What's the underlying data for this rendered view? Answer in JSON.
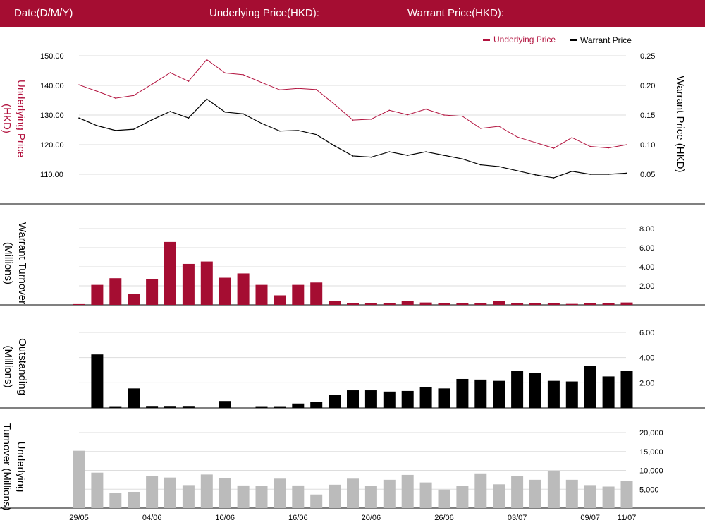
{
  "header": {
    "date_label": "Date(D/M/Y)",
    "underlying_label": "Underlying Price(HKD):",
    "warrant_label": "Warrant Price(HKD):"
  },
  "colors": {
    "brand": "#a50d32",
    "underlying_line": "#b2123e",
    "warrant_line": "#000000",
    "turnover_bar": "#a50d32",
    "outstanding_bar": "#000000",
    "underlying_turnover_bar": "#bbbbbb",
    "grid": "#dddddd"
  },
  "x_axis": {
    "ticks": [
      {
        "index": 0,
        "label": "29/05"
      },
      {
        "index": 4,
        "label": "04/06"
      },
      {
        "index": 8,
        "label": "10/06"
      },
      {
        "index": 12,
        "label": "16/06"
      },
      {
        "index": 16,
        "label": "20/06"
      },
      {
        "index": 20,
        "label": "26/06"
      },
      {
        "index": 24,
        "label": "03/07"
      },
      {
        "index": 28,
        "label": "09/07"
      },
      {
        "index": 30,
        "label": "11/07"
      }
    ]
  },
  "chart_data": [
    {
      "type": "line",
      "legend": [
        {
          "name": "Underlying Price",
          "color": "#b2123e"
        },
        {
          "name": "Warrant Price",
          "color": "#000000"
        }
      ],
      "legend_position": "top-right",
      "ylabel_left": "Underlying Price (HKD)",
      "ylabel_right": "Warrant  Price (HKD)",
      "ylim_left": [
        105,
        155
      ],
      "yticks_left": [
        "150.00",
        "140.00",
        "130.00",
        "120.00",
        "110.00"
      ],
      "ylim_right": [
        0.025,
        0.275
      ],
      "yticks_right": [
        "0.25",
        "0.20",
        "0.15",
        "0.10",
        "0.05"
      ],
      "grid": true,
      "series": [
        {
          "name": "Underlying Price",
          "axis": "left",
          "values": [
            140.2,
            138.0,
            135.7,
            136.6,
            140.4,
            144.3,
            141.4,
            148.7,
            144.2,
            143.6,
            141.0,
            138.5,
            139.0,
            138.6,
            133.6,
            128.3,
            128.6,
            131.6,
            130.1,
            132.0,
            130.0,
            129.6,
            125.5,
            126.2,
            122.6,
            120.7,
            118.8,
            122.4,
            119.4,
            118.9,
            120.0
          ]
        },
        {
          "name": "Warrant Price",
          "axis": "right",
          "values": [
            0.145,
            0.132,
            0.124,
            0.126,
            0.142,
            0.156,
            0.145,
            0.177,
            0.155,
            0.152,
            0.136,
            0.123,
            0.124,
            0.117,
            0.098,
            0.081,
            0.079,
            0.088,
            0.082,
            0.088,
            0.082,
            0.076,
            0.066,
            0.063,
            0.056,
            0.049,
            0.044,
            0.055,
            0.05,
            0.05,
            0.052
          ]
        }
      ]
    },
    {
      "type": "bar",
      "ylabel": "Warrant  Turnover (Millions)",
      "ylim": [
        0,
        8.5
      ],
      "yticks": [
        "8.00",
        "6.00",
        "4.00",
        "2.00"
      ],
      "grid": true,
      "values": [
        0.08,
        2.1,
        2.8,
        1.15,
        2.7,
        6.6,
        4.3,
        4.55,
        2.85,
        3.3,
        2.1,
        1.0,
        2.1,
        2.35,
        0.4,
        0.15,
        0.15,
        0.15,
        0.4,
        0.25,
        0.15,
        0.15,
        0.15,
        0.4,
        0.15,
        0.15,
        0.15,
        0.1,
        0.2,
        0.2,
        0.25
      ]
    },
    {
      "type": "bar",
      "ylabel": "Outstanding (Millions)",
      "ylim": [
        0,
        6.5
      ],
      "yticks": [
        "6.00",
        "4.00",
        "2.00"
      ],
      "grid": true,
      "values": [
        0,
        4.25,
        0.08,
        1.55,
        0.1,
        0.1,
        0.1,
        0,
        0.55,
        0,
        0.08,
        0.08,
        0.35,
        0.45,
        1.05,
        1.4,
        1.4,
        1.3,
        1.35,
        1.65,
        1.55,
        2.3,
        2.25,
        2.15,
        2.95,
        2.8,
        2.15,
        2.1,
        3.35,
        2.5,
        2.95
      ]
    },
    {
      "type": "bar",
      "ylabel": "Underlying Turnover (Millions)",
      "ylim": [
        0,
        22000
      ],
      "yticks": [
        "20,000",
        "15,000",
        "10,000",
        "5,000"
      ],
      "grid": true,
      "values": [
        15200,
        9400,
        4000,
        4300,
        8500,
        8100,
        6100,
        8900,
        8000,
        6000,
        5800,
        7800,
        6000,
        3600,
        6200,
        7800,
        5900,
        7500,
        8800,
        6800,
        4900,
        5800,
        9200,
        6300,
        8500,
        7500,
        9800,
        7500,
        6100,
        5700,
        7200
      ]
    }
  ]
}
